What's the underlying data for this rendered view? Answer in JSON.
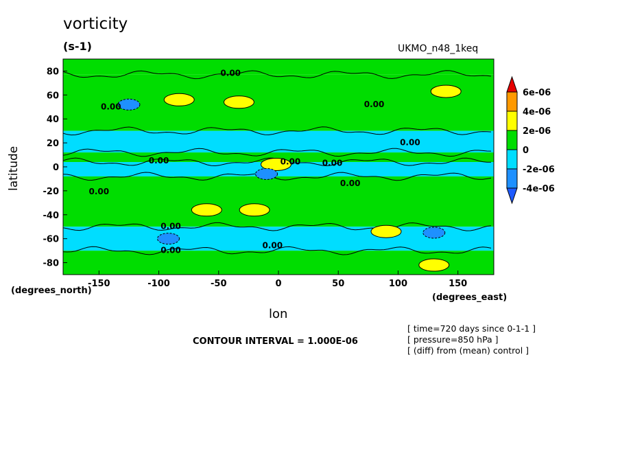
{
  "chart_data": {
    "type": "heatmap",
    "title": "vorticity",
    "units": "(s-1)",
    "dataset": "UKMO_n48_1keq",
    "xlabel": "lon",
    "ylabel": "latitude",
    "x_units": "(degrees_east)",
    "y_units": "(degrees_north)",
    "xlim": [
      -180,
      180
    ],
    "ylim": [
      -90,
      90
    ],
    "x_ticks": [
      -150,
      -100,
      -50,
      0,
      50,
      100,
      150
    ],
    "y_ticks": [
      80,
      60,
      40,
      20,
      0,
      -20,
      -40,
      -60,
      -80
    ],
    "contour_interval_text": "CONTOUR INTERVAL = 1.000E-06",
    "contour_label": "0.00",
    "colorbar": {
      "labels": [
        "6e-06",
        "4e-06",
        "2e-06",
        "0",
        "-2e-06",
        "-4e-06"
      ],
      "colors": [
        "#e60000",
        "#ff9900",
        "#ffff00",
        "#00dd00",
        "#00ddff",
        "#1e90ff",
        "#1e5aff"
      ]
    },
    "zonal_bands": [
      {
        "lat_range": [
          77,
          90
        ],
        "class": "positive",
        "color": "#00dd00"
      },
      {
        "lat_range": [
          30,
          77
        ],
        "class": "mixed",
        "color": "#00dd00"
      },
      {
        "lat_range": [
          12,
          30
        ],
        "class": "negative",
        "color": "#00ddff"
      },
      {
        "lat_range": [
          4,
          12
        ],
        "class": "positive",
        "color": "#00dd00"
      },
      {
        "lat_range": [
          -8,
          4
        ],
        "class": "negative",
        "color": "#00ddff"
      },
      {
        "lat_range": [
          -50,
          -8
        ],
        "class": "positive",
        "color": "#00dd00"
      },
      {
        "lat_range": [
          -70,
          -50
        ],
        "class": "negative",
        "color": "#00ddff"
      },
      {
        "lat_range": [
          -90,
          -70
        ],
        "class": "mixed",
        "color": "#00dd00"
      }
    ],
    "maxima": [
      {
        "lon": -83,
        "lat": 56,
        "class": "2e-06 to 4e-06"
      },
      {
        "lon": -33,
        "lat": 54,
        "class": "2e-06 to 4e-06"
      },
      {
        "lon": 140,
        "lat": 63,
        "class": "2e-06 to 4e-06"
      },
      {
        "lon": -60,
        "lat": -36,
        "class": "2e-06 to 4e-06"
      },
      {
        "lon": -20,
        "lat": -36,
        "class": "2e-06 to 4e-06"
      },
      {
        "lon": 90,
        "lat": -54,
        "class": "2e-06 to 4e-06"
      },
      {
        "lon": 130,
        "lat": -82,
        "class": "2e-06 to 4e-06"
      },
      {
        "lon": -2,
        "lat": 2,
        "class": "2e-06 to 4e-06"
      }
    ],
    "minima": [
      {
        "lon": -10,
        "lat": -6,
        "class": "-4e-06 to -2e-06"
      },
      {
        "lon": -125,
        "lat": 52,
        "class": "-4e-06 to -2e-06"
      },
      {
        "lon": 130,
        "lat": -55,
        "class": "-4e-06 to -2e-06"
      },
      {
        "lon": -92,
        "lat": -60,
        "class": "-4e-06 to -2e-06"
      }
    ]
  },
  "annotations": [
    "[ time=720 days since 0-1-1 ]",
    "[ pressure=850 hPa ]",
    "[ (diff) from (mean) control ]"
  ]
}
